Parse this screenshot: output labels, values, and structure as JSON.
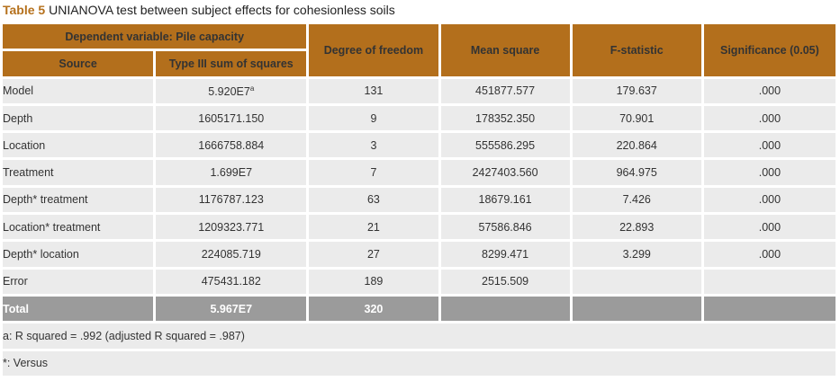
{
  "caption": {
    "label": "Table 5",
    "text": "UNIANOVA test between subject effects for cohesionless soils"
  },
  "header": {
    "dependent": "Dependent variable: Pile capacity",
    "source": "Source",
    "ss": "Type III sum of squares",
    "df": "Degree of freedom",
    "ms": "Mean square",
    "f": "F-statistic",
    "sig": "Significance (0.05)"
  },
  "rows": [
    {
      "source": "Model",
      "ss": "5.920E7",
      "ss_sup": "a",
      "df": "131",
      "ms": "451877.577",
      "f": "179.637",
      "sig": ".000"
    },
    {
      "source": "Depth",
      "ss": "1605171.150",
      "df": "9",
      "ms": "178352.350",
      "f": "70.901",
      "sig": ".000"
    },
    {
      "source": "Location",
      "ss": "1666758.884",
      "df": "3",
      "ms": "555586.295",
      "f": "220.864",
      "sig": ".000"
    },
    {
      "source": "Treatment",
      "ss": "1.699E7",
      "df": "7",
      "ms": "2427403.560",
      "f": "964.975",
      "sig": ".000"
    },
    {
      "source": "Depth* treatment",
      "ss": "1176787.123",
      "df": "63",
      "ms": "18679.161",
      "f": "7.426",
      "sig": ".000"
    },
    {
      "source": "Location* treatment",
      "ss": "1209323.771",
      "df": "21",
      "ms": "57586.846",
      "f": "22.893",
      "sig": ".000"
    },
    {
      "source": "Depth* location",
      "ss": "224085.719",
      "df": "27",
      "ms": "8299.471",
      "f": "3.299",
      "sig": ".000"
    },
    {
      "source": "Error",
      "ss": "475431.182",
      "df": "189",
      "ms": "2515.509",
      "f": "",
      "sig": ""
    }
  ],
  "total": {
    "source": "Total",
    "ss": "5.967E7",
    "df": "320"
  },
  "notes": [
    "a: R squared = .992 (adjusted R squared = .987)",
    "*: Versus"
  ]
}
